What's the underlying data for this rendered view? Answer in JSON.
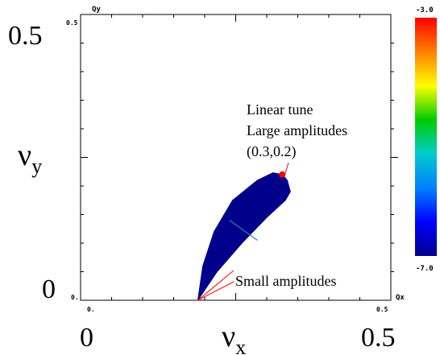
{
  "chart_data": {
    "type": "scatter",
    "title": "",
    "xlabel": "νx",
    "ylabel": "νy",
    "xlim": [
      0,
      0.5
    ],
    "ylim": [
      0,
      0.5
    ],
    "axis_small_labels": {
      "x_axis_name": "Qx",
      "y_axis_name": "Qy",
      "x_min": "0.",
      "x_max": "0.5",
      "y_min": "0.",
      "y_max": "0.5"
    },
    "big_tick_labels": {
      "x_min": "0",
      "x_max": "0.5",
      "y_min": "0",
      "y_max": "0.5"
    },
    "nu_symbol": "ν",
    "x_subscript": "x",
    "y_subscript": "y",
    "region": {
      "name": "tune footprint",
      "color": "#00008b",
      "outline": [
        [
          0.189,
          0.0
        ],
        [
          0.22,
          0.05
        ],
        [
          0.26,
          0.1
        ],
        [
          0.3,
          0.145
        ],
        [
          0.33,
          0.175
        ],
        [
          0.338,
          0.19
        ],
        [
          0.333,
          0.21
        ],
        [
          0.325,
          0.22
        ],
        [
          0.31,
          0.223
        ],
        [
          0.285,
          0.21
        ],
        [
          0.245,
          0.175
        ],
        [
          0.215,
          0.12
        ],
        [
          0.197,
          0.06
        ],
        [
          0.189,
          0.0
        ]
      ]
    },
    "linear_tune_point": {
      "x": 0.325,
      "y": 0.22,
      "color": "#ff0000"
    },
    "small_amplitude_point": {
      "x": 0.189,
      "y": 0.0
    },
    "annotations": [
      {
        "lines": [
          "Linear tune",
          "Large amplitudes",
          "(0.3,0.2)"
        ],
        "target": "linear_tune_point"
      },
      {
        "lines": [
          "Small amplitudes"
        ],
        "target": "small_amplitude_point"
      }
    ],
    "colorbar": {
      "max_label": "-3.0",
      "min_label": "-7.0",
      "range": [
        -7.0,
        -3.0
      ],
      "colors_top_to_bottom": [
        "#ff0000",
        "#ff8000",
        "#ffff00",
        "#00cc00",
        "#00cccc",
        "#0080ff",
        "#0000ff",
        "#00008b"
      ]
    },
    "grid": false
  }
}
